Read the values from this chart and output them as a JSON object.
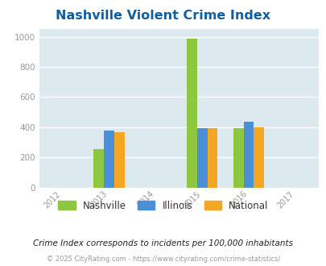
{
  "title": "Nashville Violent Crime Index",
  "all_years": [
    2012,
    2013,
    2014,
    2015,
    2016,
    2017
  ],
  "data_years": [
    2013,
    2015,
    2016
  ],
  "data": {
    "Nashville": {
      "2013": 255,
      "2015": 990,
      "2016": 393
    },
    "Illinois": {
      "2013": 378,
      "2015": 393,
      "2016": 435
    },
    "National": {
      "2013": 368,
      "2015": 393,
      "2016": 400
    }
  },
  "colors": {
    "Nashville": "#8DC63F",
    "Illinois": "#4A90D9",
    "National": "#F5A623"
  },
  "bar_width": 0.22,
  "ylim": [
    0,
    1050
  ],
  "yticks": [
    0,
    200,
    400,
    600,
    800,
    1000
  ],
  "background_color": "#DCE9EF",
  "grid_color": "#FFFFFF",
  "title_color": "#1060A0",
  "legend_labels": [
    "Nashville",
    "Illinois",
    "National"
  ],
  "footer_note": "Crime Index corresponds to incidents per 100,000 inhabitants",
  "copyright": "© 2025 CityRating.com - https://www.cityrating.com/crime-statistics/"
}
